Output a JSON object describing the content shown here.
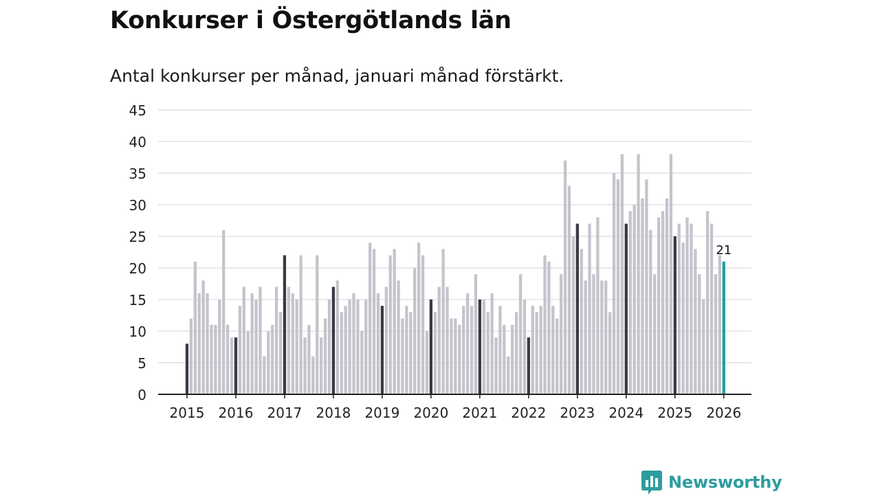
{
  "title": "Konkurser i Östergötlands län",
  "subtitle": "Antal konkurser per månad, januari månad förstärkt.",
  "brand": "Newsworthy",
  "colors": {
    "highlight": "#3a3945",
    "bar": "#c5c4cc",
    "latest": "#1d9f9c",
    "grid": "#dcdce0",
    "axis": "#222222",
    "brand": "#2e9d9f"
  },
  "chart_data": {
    "type": "bar",
    "title": "Konkurser i Östergötlands län",
    "subtitle": "Antal konkurser per månad, januari månad förstärkt.",
    "xlabel": "",
    "ylabel": "",
    "ylim": [
      0,
      45
    ],
    "yticks": [
      "0",
      "5",
      "10",
      "15",
      "20",
      "25",
      "30",
      "35",
      "40",
      "45"
    ],
    "year_labels": [
      "2015",
      "2016",
      "2017",
      "2018",
      "2019",
      "2020",
      "2021",
      "2022",
      "2023",
      "2024",
      "2025",
      "2026"
    ],
    "start": "2015-01",
    "annotation": {
      "label": "21",
      "target": "2026-01"
    },
    "values": [
      8,
      12,
      21,
      16,
      18,
      16,
      11,
      11,
      15,
      26,
      11,
      9,
      9,
      14,
      17,
      10,
      16,
      15,
      17,
      6,
      10,
      11,
      17,
      13,
      22,
      17,
      16,
      15,
      22,
      9,
      11,
      6,
      22,
      9,
      12,
      15,
      17,
      18,
      13,
      14,
      15,
      16,
      15,
      10,
      15,
      24,
      23,
      16,
      14,
      17,
      22,
      23,
      18,
      12,
      14,
      13,
      20,
      24,
      22,
      10,
      15,
      13,
      17,
      23,
      17,
      12,
      12,
      11,
      14,
      16,
      14,
      19,
      15,
      15,
      13,
      16,
      9,
      14,
      11,
      6,
      11,
      13,
      19,
      15,
      9,
      14,
      13,
      14,
      22,
      21,
      14,
      12,
      19,
      37,
      33,
      25,
      27,
      23,
      18,
      27,
      19,
      28,
      18,
      18,
      13,
      35,
      34,
      38,
      27,
      29,
      30,
      38,
      31,
      34,
      26,
      19,
      28,
      29,
      31,
      38,
      25,
      27,
      24,
      28,
      27,
      23,
      19,
      15,
      29,
      27,
      19,
      22,
      21
    ]
  }
}
